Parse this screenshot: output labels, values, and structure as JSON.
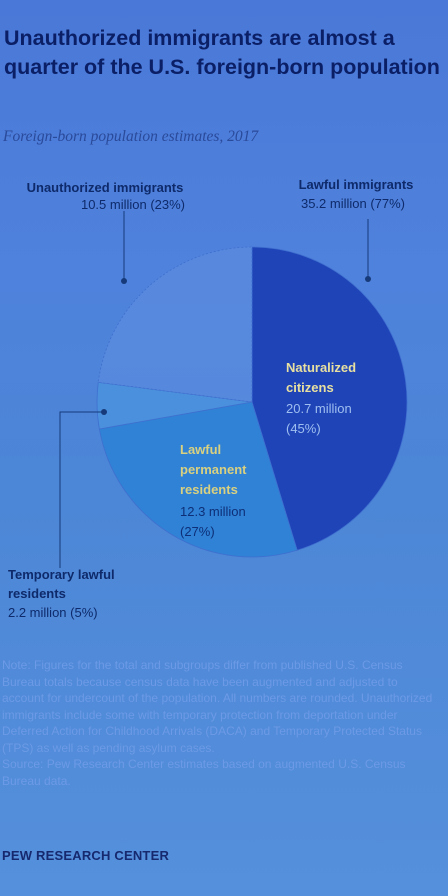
{
  "header": {
    "title": "Unauthorized immigrants are almost a quarter of the U.S. foreign-born population",
    "subtitle": "Foreign-born population estimates, 2017"
  },
  "chart_data": {
    "type": "pie",
    "title": "Unauthorized immigrants are almost a quarter of the U.S. foreign-born population",
    "subtitle": "Foreign-born population estimates, 2017",
    "groups": [
      {
        "name": "Unauthorized immigrants",
        "value": "10.5 million (23%)",
        "millions": 10.5,
        "percent": 23
      },
      {
        "name": "Lawful immigrants",
        "value": "35.2 million (77%)",
        "millions": 35.2,
        "percent": 77
      }
    ],
    "slices": [
      {
        "name": "Naturalized citizens",
        "value": "20.7 million (45%)",
        "millions": 20.7,
        "percent": 45,
        "color": "#1f44b8",
        "group": "Lawful immigrants"
      },
      {
        "name": "Lawful permanent residents",
        "value": "12.3 million (27%)",
        "millions": 12.3,
        "percent": 27,
        "color": "#2f82d6",
        "group": "Lawful immigrants"
      },
      {
        "name": "Temporary lawful residents",
        "value": "2.2 million (5%)",
        "millions": 2.2,
        "percent": 5,
        "color": "#4a90dc",
        "group": "Lawful immigrants"
      },
      {
        "name": "Unauthorized immigrants",
        "value": "10.5 million (23%)",
        "millions": 10.5,
        "percent": 23,
        "color": "#5f8ee0",
        "group": "Unauthorized immigrants"
      }
    ]
  },
  "labels": {
    "unauthorized": {
      "name": "Unauthorized immigrants",
      "value": "10.5 million (23%)"
    },
    "lawful": {
      "name": "Lawful immigrants",
      "value": "35.2 million (77%)"
    },
    "naturalized": {
      "line1": "Naturalized",
      "line2": "citizens",
      "line3": "20.7 million",
      "line4": "(45%)"
    },
    "permanent": {
      "line1": "Lawful",
      "line2": "permanent",
      "line3": "residents",
      "line4": "12.3 million",
      "line5": "(27%)"
    },
    "temporary": {
      "line1": "Temporary lawful",
      "line2": "residents",
      "line3": "2.2 million (5%)"
    }
  },
  "notes": {
    "note": "Note: Figures for the total and subgroups differ from published U.S. Census Bureau totals because census data have been augmented and adjusted to account for undercount of the population. All numbers are rounded. Unauthorized immigrants include some with temporary protection from deportation under Deferred Action for Childhood Arrivals (DACA) and Temporary Protected Status (TPS) as well as pending asylum cases.",
    "source": "Source: Pew Research Center estimates based on augmented U.S. Census Bureau data."
  },
  "footer": {
    "org": "PEW RESEARCH CENTER"
  }
}
